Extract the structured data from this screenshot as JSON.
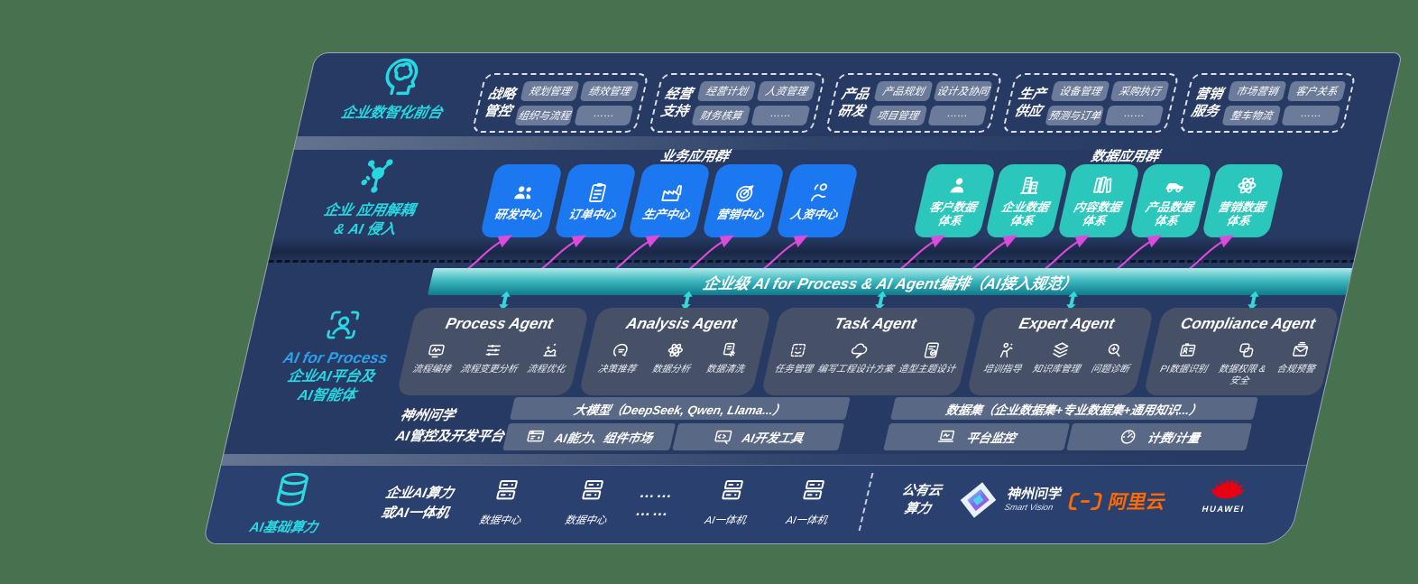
{
  "background_color": "#48714F",
  "colors": {
    "panel": "#263A63",
    "panel_bottom": "#2A406F",
    "blue_box": "#1B78F0",
    "teal_box": "#2BC7BC",
    "accent_teal": "#2BD9E0",
    "magenta_arrow": "#DC4BDC",
    "alibaba_orange": "#FF6A00",
    "huawei_red": "#E60012"
  },
  "front_layer": {
    "label": "企业数智化前台",
    "icon": "head-brain-icon",
    "groups": [
      {
        "title": "战略\n管控",
        "chips": [
          "规划管理",
          "绩效管理",
          "组织与流程",
          "……"
        ]
      },
      {
        "title": "经营\n支持",
        "chips": [
          "经营计划",
          "人资管理",
          "财务核算",
          "……"
        ]
      },
      {
        "title": "产品\n研发",
        "chips": [
          "产品规划",
          "设计及协同",
          "项目管理",
          "……"
        ]
      },
      {
        "title": "生产\n供应",
        "chips": [
          "设备管理",
          "采购执行",
          "预测与订单",
          "……"
        ]
      },
      {
        "title": "营销\n服务",
        "chips": [
          "市场营销",
          "客户关系",
          "整车物流",
          "……"
        ]
      }
    ]
  },
  "decouple_layer": {
    "label": "企业 应用解耦\n& AI 侵入",
    "icon": "molecule-icon",
    "business_group_title": "业务应用群",
    "data_group_title": "数据应用群",
    "business_apps": [
      {
        "label": "研发中心",
        "icon": "team-icon"
      },
      {
        "label": "订单中心",
        "icon": "clipboard-icon"
      },
      {
        "label": "生产中心",
        "icon": "factory-icon"
      },
      {
        "label": "营销中心",
        "icon": "target-icon"
      },
      {
        "label": "人资中心",
        "icon": "person-wave-icon"
      }
    ],
    "data_apps": [
      {
        "label": "客户数据\n体系",
        "icon": "person-icon"
      },
      {
        "label": "企业数据\n体系",
        "icon": "building-icon"
      },
      {
        "label": "内容数据\n体系",
        "icon": "books-icon"
      },
      {
        "label": "产品数据\n体系",
        "icon": "car-icon"
      },
      {
        "label": "营销数据\n体系",
        "icon": "atom-icon"
      }
    ]
  },
  "band": {
    "label": "企业级 AI for Process & AI Agent编排（AI接入规范）"
  },
  "agent_layer": {
    "label_top": "AI for Process",
    "label_bottom": "企业AI平台及\nAI智能体",
    "icon": "person-scan-icon",
    "agents": [
      {
        "title": "Process Agent",
        "items": [
          {
            "label": "流程编排",
            "icon": "flow-icon"
          },
          {
            "label": "流程变更分析",
            "icon": "sliders-icon"
          },
          {
            "label": "流程优化",
            "icon": "optimize-icon"
          }
        ]
      },
      {
        "title": "Analysis Agent",
        "items": [
          {
            "label": "决策推荐",
            "icon": "chat-icon"
          },
          {
            "label": "数据分析",
            "icon": "atom-icon"
          },
          {
            "label": "数据清洗",
            "icon": "clean-doc-icon"
          }
        ]
      },
      {
        "title": "Task Agent",
        "items": [
          {
            "label": "任务管理",
            "icon": "robot-grid-icon"
          },
          {
            "label": "编写工程设计方案",
            "icon": "cloud-pen-icon"
          },
          {
            "label": "造型主题设计",
            "icon": "style-pad-icon"
          }
        ]
      },
      {
        "title": "Expert Agent",
        "items": [
          {
            "label": "培训指导",
            "icon": "training-icon"
          },
          {
            "label": "知识库管理",
            "icon": "layers-icon"
          },
          {
            "label": "问题诊断",
            "icon": "diagnose-icon"
          }
        ]
      },
      {
        "title": "Compliance Agent",
        "items": [
          {
            "label": "PI数据识别",
            "icon": "id-card-icon"
          },
          {
            "label": "数据权限 &\n安全",
            "icon": "secure-icon"
          },
          {
            "label": "合规预警",
            "icon": "mail-alert-icon"
          }
        ]
      }
    ]
  },
  "platform": {
    "label": "神州问学\nAI管控及开发平台",
    "model_bar": "大模型（DeepSeek, Qwen, Llama...）",
    "cells_left": [
      {
        "label": "AI能力、组件市场",
        "icon": "module-market-icon"
      },
      {
        "label": "AI开发工具",
        "icon": "dev-tools-icon"
      }
    ],
    "dataset_bar": "数据集（企业数据集+专业数据集+通用知识...）",
    "cells_right": [
      {
        "label": "平台监控",
        "icon": "monitor-icon"
      },
      {
        "label": "计费/计量",
        "icon": "gauge-icon"
      }
    ]
  },
  "infra": {
    "label": "AI基础算力",
    "icon": "database-icon",
    "compute_label": "企业AI算力\n或AI一体机",
    "nodes": [
      {
        "label": "数据中心",
        "icon": "server-icon"
      },
      {
        "label": "数据中心",
        "icon": "server-icon"
      },
      {
        "label": "…… ……",
        "icon": "dots"
      },
      {
        "label": "AI一体机",
        "icon": "server-icon"
      },
      {
        "label": "AI一体机",
        "icon": "server-icon"
      }
    ],
    "cloud_label": "公有云\n算力",
    "logos": [
      {
        "name": "神州问学",
        "sub": "Smart Vision"
      },
      {
        "name": "阿里云"
      },
      {
        "name": "HUAWEI"
      }
    ]
  }
}
